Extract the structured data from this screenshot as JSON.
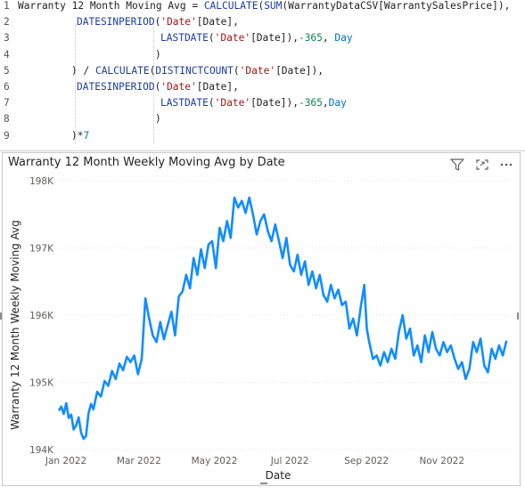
{
  "editor": {
    "lines": [
      {
        "num": "1",
        "indent": 0,
        "tokens": [
          {
            "t": "Warranty 12 Month Moving Avg = ",
            "c": "plain"
          },
          {
            "t": "CALCULATE",
            "c": "fn"
          },
          {
            "t": "(",
            "c": "plain"
          },
          {
            "t": "SUM",
            "c": "fn"
          },
          {
            "t": "(WarrantyDataCSV[WarrantySalesPrice]),",
            "c": "plain"
          }
        ]
      },
      {
        "num": "2",
        "indent": 66,
        "tokens": [
          {
            "t": "DATESINPERIOD",
            "c": "fn"
          },
          {
            "t": "(",
            "c": "plain"
          },
          {
            "t": "'Date'",
            "c": "str"
          },
          {
            "t": "[Date],",
            "c": "plain"
          }
        ]
      },
      {
        "num": "3",
        "indent": 160,
        "tokens": [
          {
            "t": "LASTDATE",
            "c": "fn"
          },
          {
            "t": "(",
            "c": "plain"
          },
          {
            "t": "'Date'",
            "c": "str"
          },
          {
            "t": "[Date]),",
            "c": "plain"
          },
          {
            "t": "-365",
            "c": "num"
          },
          {
            "t": ", ",
            "c": "plain"
          },
          {
            "t": "Day",
            "c": "kw"
          }
        ]
      },
      {
        "num": "4",
        "indent": 154,
        "tokens": [
          {
            "t": ")",
            "c": "plain"
          }
        ]
      },
      {
        "num": "5",
        "indent": 60,
        "tokens": [
          {
            "t": ") / ",
            "c": "plain"
          },
          {
            "t": "CALCULATE",
            "c": "fn"
          },
          {
            "t": "(",
            "c": "plain"
          },
          {
            "t": "DISTINCTCOUNT",
            "c": "fn"
          },
          {
            "t": "(",
            "c": "plain"
          },
          {
            "t": "'Date'",
            "c": "str"
          },
          {
            "t": "[Date]),",
            "c": "plain"
          }
        ]
      },
      {
        "num": "6",
        "indent": 66,
        "tokens": [
          {
            "t": "DATESINPERIOD",
            "c": "fn"
          },
          {
            "t": "(",
            "c": "plain"
          },
          {
            "t": "'Date'",
            "c": "str"
          },
          {
            "t": "[Date],",
            "c": "plain"
          }
        ]
      },
      {
        "num": "7",
        "indent": 160,
        "tokens": [
          {
            "t": "LASTDATE",
            "c": "fn"
          },
          {
            "t": "(",
            "c": "plain"
          },
          {
            "t": "'Date'",
            "c": "str"
          },
          {
            "t": "[Date]),",
            "c": "plain"
          },
          {
            "t": "-365",
            "c": "num"
          },
          {
            "t": ",",
            "c": "plain"
          },
          {
            "t": "Day",
            "c": "kw"
          }
        ]
      },
      {
        "num": "8",
        "indent": 154,
        "tokens": [
          {
            "t": ")",
            "c": "plain"
          }
        ]
      },
      {
        "num": "9",
        "indent": 60,
        "tokens": [
          {
            "t": ")*",
            "c": "plain"
          },
          {
            "t": "7",
            "c": "num"
          }
        ]
      }
    ]
  },
  "visual": {
    "title": "Warranty 12 Month Weekly Moving Avg by Date",
    "header_icons": [
      "filter-icon",
      "focus-mode-icon",
      "more-options-icon"
    ],
    "line_color": "#118DFF"
  },
  "chart_data": {
    "type": "line",
    "title": "Warranty 12 Month Weekly Moving Avg by Date",
    "xlabel": "Date",
    "ylabel": "Warranty 12 Month Weekly Moving Avg",
    "x_ticks": [
      "Jan 2022",
      "Mar 2022",
      "May 2022",
      "Jul 2022",
      "Sep 2022",
      "Nov 2022"
    ],
    "y_ticks": [
      "194K",
      "195K",
      "196K",
      "197K",
      "198K"
    ],
    "y_tick_values": [
      194000,
      195000,
      196000,
      197000,
      198000
    ],
    "ylim": [
      194000,
      198000
    ],
    "xlim": [
      "2022-01-01",
      "2022-12-31"
    ],
    "grid": true,
    "series": [
      {
        "values": [
          [
            "2022-01-01",
            194580
          ],
          [
            "2022-01-03",
            194640
          ],
          [
            "2022-01-05",
            194530
          ],
          [
            "2022-01-07",
            194690
          ],
          [
            "2022-01-09",
            194470
          ],
          [
            "2022-01-11",
            194520
          ],
          [
            "2022-01-13",
            194300
          ],
          [
            "2022-01-15",
            194360
          ],
          [
            "2022-01-17",
            194480
          ],
          [
            "2022-01-19",
            194250
          ],
          [
            "2022-01-21",
            194160
          ],
          [
            "2022-01-23",
            194200
          ],
          [
            "2022-01-25",
            194540
          ],
          [
            "2022-01-27",
            194680
          ],
          [
            "2022-01-29",
            194600
          ],
          [
            "2022-02-01",
            194860
          ],
          [
            "2022-02-04",
            194790
          ],
          [
            "2022-02-07",
            195020
          ],
          [
            "2022-02-10",
            194950
          ],
          [
            "2022-02-13",
            195170
          ],
          [
            "2022-02-16",
            195050
          ],
          [
            "2022-02-19",
            195280
          ],
          [
            "2022-02-22",
            195180
          ],
          [
            "2022-02-25",
            195380
          ],
          [
            "2022-02-28",
            195300
          ],
          [
            "2022-03-03",
            195400
          ],
          [
            "2022-03-06",
            195120
          ],
          [
            "2022-03-09",
            195350
          ],
          [
            "2022-03-12",
            196250
          ],
          [
            "2022-03-15",
            195950
          ],
          [
            "2022-03-18",
            195700
          ],
          [
            "2022-03-21",
            195600
          ],
          [
            "2022-03-24",
            195900
          ],
          [
            "2022-03-27",
            195640
          ],
          [
            "2022-03-30",
            195850
          ],
          [
            "2022-04-02",
            196050
          ],
          [
            "2022-04-05",
            195700
          ],
          [
            "2022-04-08",
            196280
          ],
          [
            "2022-04-11",
            196350
          ],
          [
            "2022-04-14",
            196600
          ],
          [
            "2022-04-17",
            196400
          ],
          [
            "2022-04-20",
            196850
          ],
          [
            "2022-04-23",
            196600
          ],
          [
            "2022-04-26",
            196980
          ],
          [
            "2022-04-29",
            196700
          ],
          [
            "2022-05-02",
            197050
          ],
          [
            "2022-05-05",
            197100
          ],
          [
            "2022-05-08",
            196700
          ],
          [
            "2022-05-11",
            197300
          ],
          [
            "2022-05-14",
            197100
          ],
          [
            "2022-05-17",
            197400
          ],
          [
            "2022-05-20",
            197150
          ],
          [
            "2022-05-23",
            197750
          ],
          [
            "2022-05-26",
            197600
          ],
          [
            "2022-05-29",
            197700
          ],
          [
            "2022-06-01",
            197520
          ],
          [
            "2022-06-04",
            197750
          ],
          [
            "2022-06-07",
            197500
          ],
          [
            "2022-06-10",
            197200
          ],
          [
            "2022-06-13",
            197400
          ],
          [
            "2022-06-16",
            197500
          ],
          [
            "2022-06-19",
            197250
          ],
          [
            "2022-06-22",
            197100
          ],
          [
            "2022-06-25",
            197350
          ],
          [
            "2022-06-28",
            197100
          ],
          [
            "2022-07-01",
            196850
          ],
          [
            "2022-07-04",
            197150
          ],
          [
            "2022-07-07",
            196750
          ],
          [
            "2022-07-10",
            196650
          ],
          [
            "2022-07-13",
            196900
          ],
          [
            "2022-07-16",
            196600
          ],
          [
            "2022-07-19",
            196800
          ],
          [
            "2022-07-22",
            196450
          ],
          [
            "2022-07-25",
            196650
          ],
          [
            "2022-07-28",
            196400
          ],
          [
            "2022-07-31",
            196600
          ],
          [
            "2022-08-03",
            196300
          ],
          [
            "2022-08-06",
            196200
          ],
          [
            "2022-08-09",
            196450
          ],
          [
            "2022-08-12",
            196250
          ],
          [
            "2022-08-15",
            196380
          ],
          [
            "2022-08-18",
            196150
          ],
          [
            "2022-08-21",
            196200
          ],
          [
            "2022-08-24",
            195800
          ],
          [
            "2022-08-27",
            195950
          ],
          [
            "2022-08-30",
            195700
          ],
          [
            "2022-09-02",
            196100
          ],
          [
            "2022-09-05",
            196450
          ],
          [
            "2022-09-07",
            195800
          ],
          [
            "2022-09-09",
            195600
          ],
          [
            "2022-09-12",
            195350
          ],
          [
            "2022-09-15",
            195400
          ],
          [
            "2022-09-18",
            195250
          ],
          [
            "2022-09-21",
            195450
          ],
          [
            "2022-09-24",
            195300
          ],
          [
            "2022-09-27",
            195500
          ],
          [
            "2022-09-30",
            195350
          ],
          [
            "2022-10-03",
            195750
          ],
          [
            "2022-10-06",
            196000
          ],
          [
            "2022-10-09",
            195650
          ],
          [
            "2022-10-12",
            195800
          ],
          [
            "2022-10-15",
            195400
          ],
          [
            "2022-10-18",
            195550
          ],
          [
            "2022-10-21",
            195300
          ],
          [
            "2022-10-24",
            195700
          ],
          [
            "2022-10-27",
            195450
          ],
          [
            "2022-10-30",
            195750
          ],
          [
            "2022-11-02",
            195500
          ],
          [
            "2022-11-05",
            195400
          ],
          [
            "2022-11-08",
            195600
          ],
          [
            "2022-11-11",
            195450
          ],
          [
            "2022-11-14",
            195550
          ],
          [
            "2022-11-17",
            195350
          ],
          [
            "2022-11-20",
            195200
          ],
          [
            "2022-11-23",
            195300
          ],
          [
            "2022-11-26",
            195050
          ],
          [
            "2022-11-29",
            195200
          ],
          [
            "2022-12-02",
            195600
          ],
          [
            "2022-12-05",
            195450
          ],
          [
            "2022-12-08",
            195650
          ],
          [
            "2022-12-11",
            195250
          ],
          [
            "2022-12-14",
            195150
          ],
          [
            "2022-12-17",
            195500
          ],
          [
            "2022-12-20",
            195350
          ],
          [
            "2022-12-23",
            195550
          ],
          [
            "2022-12-26",
            195400
          ],
          [
            "2022-12-29",
            195620
          ]
        ]
      }
    ]
  }
}
